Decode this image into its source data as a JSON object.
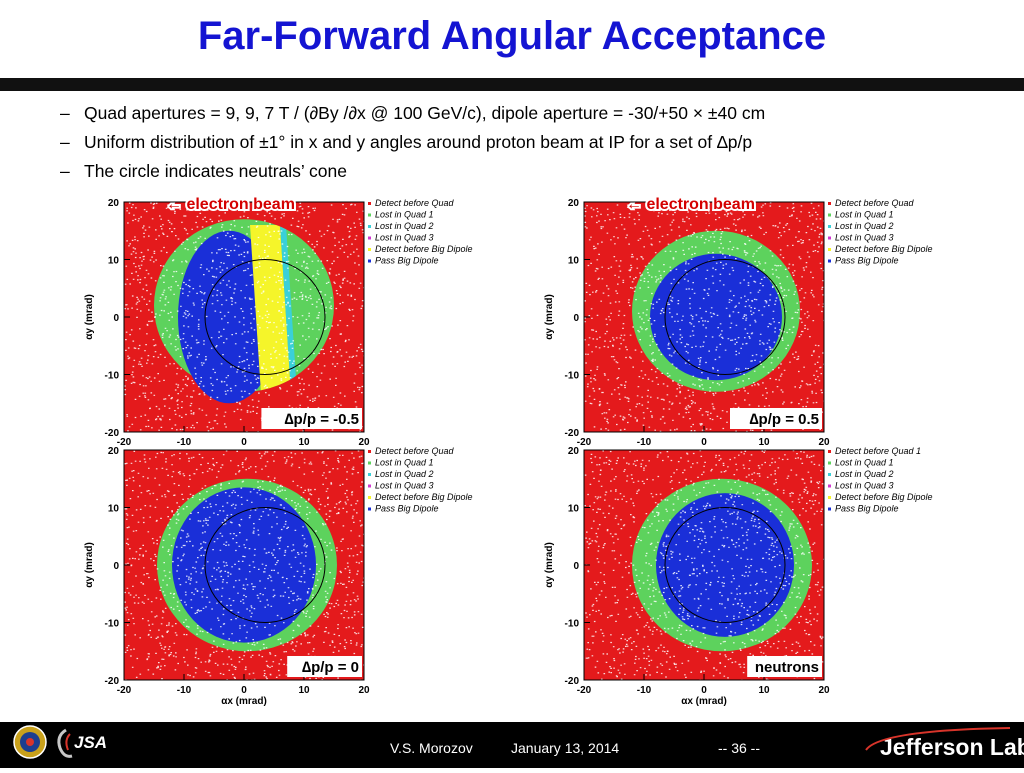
{
  "slide": {
    "title": "Far-Forward Angular Acceptance",
    "bullets": [
      "Quad apertures = 9, 9, 7 T / (∂By /∂x @ 100 GeV/c), dipole aperture = -30/+50 × ±40 cm",
      "Uniform distribution of ±1° in x and y angles around proton beam at IP for a set of ∆p/p",
      "The circle indicates neutrals’ cone"
    ]
  },
  "colors": {
    "detect_before_quad": "#e41a1c",
    "lost_quad_1": "#5dd25d",
    "lost_quad_2": "#3ad0d8",
    "lost_quad_3": "#d03ad0",
    "detect_before_big_dipole": "#f5f52a",
    "pass_big_dipole": "#1a2fd8",
    "title": "#1414d2",
    "annotation": "#d40000"
  },
  "plots": [
    {
      "annotation": "← electron beam",
      "corner_label": "∆p/p = -0.5",
      "ylabel": "αy (mrad)",
      "xlabel": "",
      "legend": [
        "Detect before Quad",
        "Lost in Quad 1",
        "Lost in Quad 2",
        "Lost in Quad 3",
        "Detect before Big Dipole",
        "Pass Big Dipole"
      ]
    },
    {
      "annotation": "← electron beam",
      "corner_label": "∆p/p = 0.5",
      "ylabel": "αy (mrad)",
      "xlabel": "",
      "legend": [
        "Detect before Quad",
        "Lost in Quad 1",
        "Lost in Quad 2",
        "Lost in Quad 3",
        "Detect before Big Dipole",
        "Pass Big Dipole"
      ]
    },
    {
      "annotation": "",
      "corner_label": "∆p/p = 0",
      "ylabel": "αy (mrad)",
      "xlabel": "αx (mrad)",
      "legend": [
        "Detect before Quad",
        "Lost in Quad 1",
        "Lost in Quad 2",
        "Lost in Quad 3",
        "Detect before Big Dipole",
        "Pass Big Dipole"
      ]
    },
    {
      "annotation": "",
      "corner_label": "neutrons",
      "ylabel": "αy (mrad)",
      "xlabel": "αx (mrad)",
      "legend": [
        "Detect before Quad 1",
        "Lost in Quad 1",
        "Lost in Quad 2",
        "Lost in Quad 3",
        "Detect before Big Dipole",
        "Pass Big Dipole"
      ]
    }
  ],
  "footer": {
    "author": "V.S. Morozov",
    "date": "January 13, 2014",
    "page": "-- 36 --",
    "lab_logo_text": "Jefferson Lab",
    "jsa_logo_text": "JSA"
  },
  "chart_data": [
    {
      "type": "scatter",
      "xlim": [
        -20,
        20
      ],
      "ylim": [
        -20,
        20
      ],
      "xticks": [
        -20,
        -10,
        0,
        10,
        20
      ],
      "yticks": [
        -20,
        -10,
        0,
        10,
        20
      ],
      "xlabel": "",
      "ylabel": "αy (mrad)",
      "legend_placement": "right",
      "series": [
        {
          "name": "Detect before Quad",
          "region": "outside",
          "color": "#e41a1c"
        },
        {
          "name": "Lost in Quad 1",
          "region": "annulus",
          "color": "#5dd25d"
        },
        {
          "name": "Lost in Quad 2",
          "region": "stripe",
          "color": "#3ad0d8"
        },
        {
          "name": "Lost in Quad 3",
          "region": "none",
          "color": "#d03ad0"
        },
        {
          "name": "Detect before Big Dipole",
          "region": "stripe",
          "color": "#f5f52a"
        },
        {
          "name": "Pass Big Dipole",
          "region": "core",
          "color": "#1a2fd8"
        }
      ],
      "aperture": {
        "cx": 0,
        "cy": 2,
        "r": 15
      },
      "core": {
        "cx": -2.5,
        "cy": 0,
        "rx": 8.5,
        "ry": 15
      },
      "yellow_stripe": {
        "x0": 2,
        "x1": 7
      },
      "cyan_stripe": {
        "x0": 7,
        "x1": 8
      },
      "neutral_cone": {
        "cx": 3.5,
        "cy": 0,
        "r": 10
      }
    },
    {
      "type": "scatter",
      "xlim": [
        -20,
        20
      ],
      "ylim": [
        -20,
        20
      ],
      "xticks": [
        -20,
        -10,
        0,
        10,
        20
      ],
      "yticks": [
        -20,
        -10,
        0,
        10,
        20
      ],
      "xlabel": "",
      "ylabel": "αy (mrad)",
      "legend_placement": "right",
      "series": [
        {
          "name": "Detect before Quad",
          "region": "outside",
          "color": "#e41a1c"
        },
        {
          "name": "Lost in Quad 1",
          "region": "annulus",
          "color": "#5dd25d"
        },
        {
          "name": "Pass Big Dipole",
          "region": "core",
          "color": "#1a2fd8"
        }
      ],
      "aperture": {
        "cx": 2,
        "cy": 1,
        "r": 14
      },
      "core": {
        "cx": 2,
        "cy": 0,
        "rx": 11,
        "ry": 11
      },
      "neutral_cone": {
        "cx": 3.5,
        "cy": 0,
        "r": 10
      }
    },
    {
      "type": "scatter",
      "xlim": [
        -20,
        20
      ],
      "ylim": [
        -20,
        20
      ],
      "xticks": [
        -20,
        -10,
        0,
        10,
        20
      ],
      "yticks": [
        -20,
        -10,
        0,
        10,
        20
      ],
      "xlabel": "αx (mrad)",
      "ylabel": "αy (mrad)",
      "legend_placement": "right",
      "series": [
        {
          "name": "Detect before Quad",
          "region": "outside",
          "color": "#e41a1c"
        },
        {
          "name": "Lost in Quad 1",
          "region": "annulus",
          "color": "#5dd25d"
        },
        {
          "name": "Pass Big Dipole",
          "region": "core",
          "color": "#1a2fd8"
        }
      ],
      "aperture": {
        "cx": 0.5,
        "cy": 0,
        "r": 15
      },
      "core": {
        "cx": 0,
        "cy": 0,
        "rx": 12,
        "ry": 13.5
      },
      "neutral_cone": {
        "cx": 3.5,
        "cy": 0,
        "r": 10
      }
    },
    {
      "type": "scatter",
      "xlim": [
        -20,
        20
      ],
      "ylim": [
        -20,
        20
      ],
      "xticks": [
        -20,
        -10,
        0,
        10,
        20
      ],
      "yticks": [
        -20,
        -10,
        0,
        10,
        20
      ],
      "xlabel": "αx (mrad)",
      "ylabel": "αy (mrad)",
      "legend_placement": "right",
      "series": [
        {
          "name": "Detect before Quad 1",
          "region": "outside",
          "color": "#e41a1c"
        },
        {
          "name": "Lost in Quad 1",
          "region": "annulus",
          "color": "#5dd25d"
        },
        {
          "name": "Pass Big Dipole",
          "region": "core",
          "color": "#1a2fd8"
        }
      ],
      "aperture": {
        "cx": 3,
        "cy": 0,
        "r": 15
      },
      "core": {
        "cx": 3.5,
        "cy": 0,
        "rx": 11.5,
        "ry": 12.5
      },
      "neutral_cone": {
        "cx": 3.5,
        "cy": 0,
        "r": 10
      }
    }
  ]
}
